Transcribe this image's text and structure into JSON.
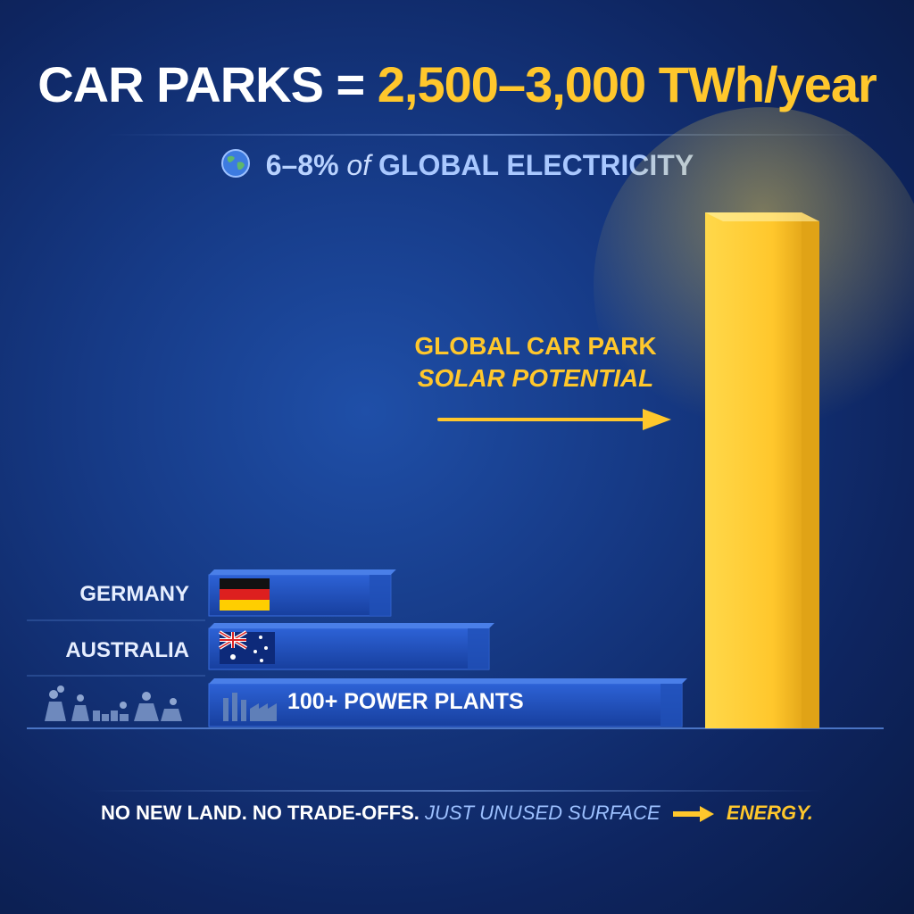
{
  "header": {
    "title_left": "CAR PARKS",
    "title_eq": "=",
    "title_value": "2,500–3,000 TWh/year",
    "subtitle_pct": "6–8%",
    "subtitle_of": "of",
    "subtitle_rest": "GLOBAL ELECTRICITY"
  },
  "annotation": {
    "line1": "GLOBAL CAR PARK",
    "line2": "SOLAR POTENTIAL"
  },
  "footer": {
    "part1": "NO NEW LAND. NO TRADE-OFFS.",
    "part2": "JUST UNUSED SURFACE",
    "part3": "ENERGY."
  },
  "colors": {
    "accent_yellow": "#ffc72c",
    "bar_blue": "#1e4fc0",
    "text_white": "#ffffff"
  },
  "chart_data": {
    "type": "bar",
    "orientation": "horizontal-comparison",
    "categories": [
      "GERMANY",
      "AUSTRALIA",
      "100+ POWER PLANTS",
      "GLOBAL CAR PARK SOLAR POTENTIAL"
    ],
    "values": [
      500,
      770,
      1300,
      2750
    ],
    "value_unit": "TWh/year (approximate, no axis shown)",
    "bar_labels": {
      "GERMANY": "",
      "AUSTRALIA": "",
      "100+ POWER PLANTS": "100+ POWER PLANTS"
    },
    "icons": {
      "GERMANY": "germany-flag",
      "AUSTRALIA": "australia-flag",
      "100+ POWER PLANTS": "power-plant-icons"
    },
    "highlight_color": "#ffc72c",
    "grid": false,
    "legend": "none"
  }
}
